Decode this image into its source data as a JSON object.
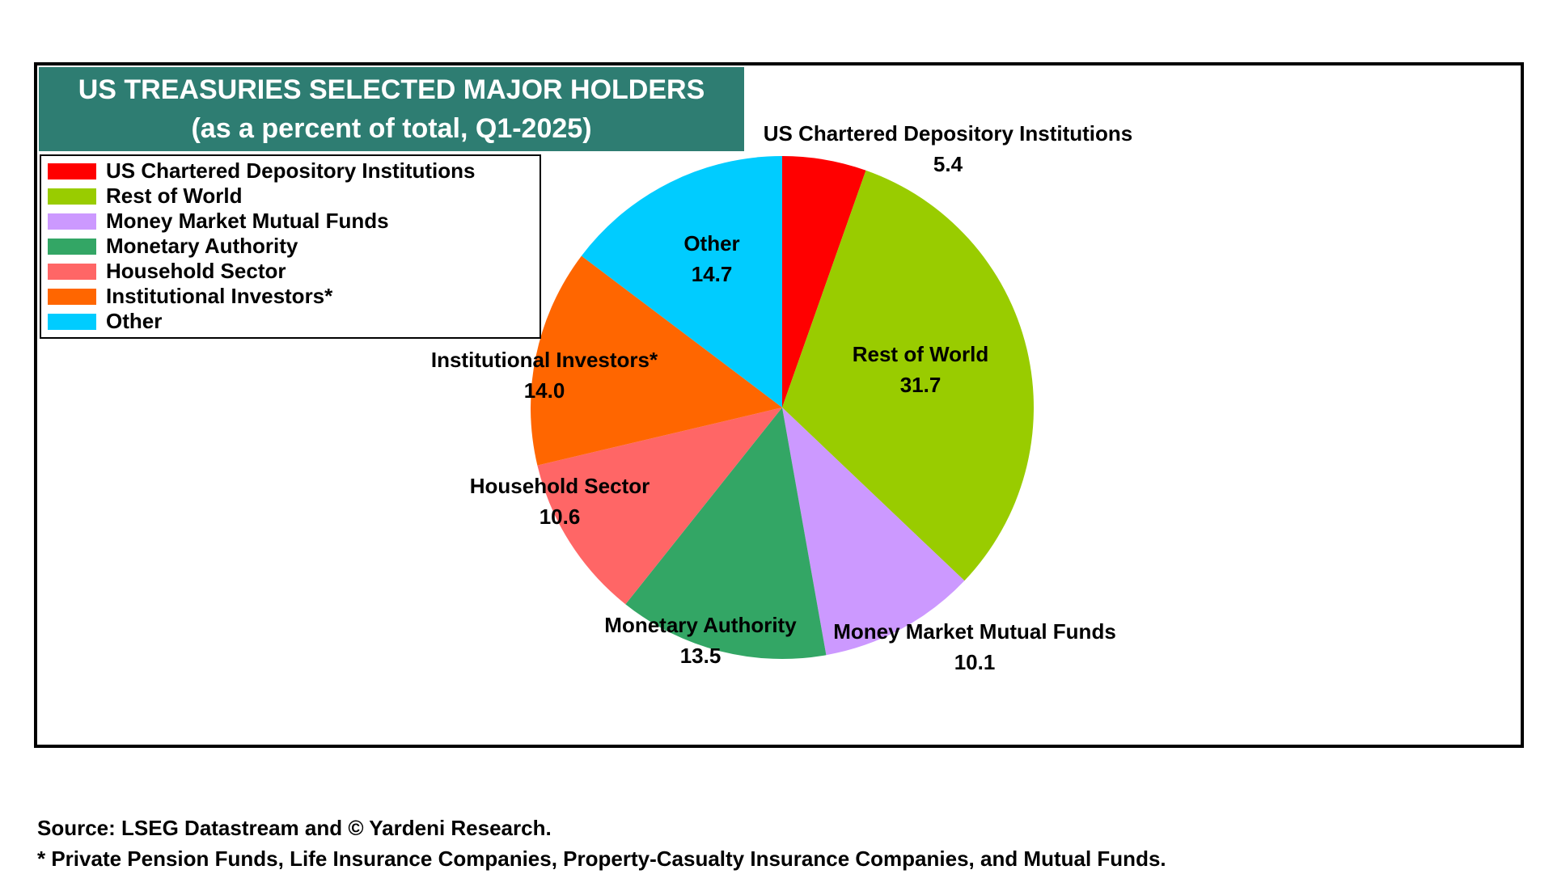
{
  "chart_data": {
    "type": "pie",
    "title": "US TREASURIES SELECTED MAJOR HOLDERS",
    "subtitle": "(as a percent of total, Q1-2025)",
    "categories": [
      "US Chartered Depository Institutions",
      "Rest of World",
      "Money Market Mutual Funds",
      "Monetary Authority",
      "Household Sector",
      "Institutional Investors*",
      "Other"
    ],
    "values": [
      5.4,
      31.7,
      10.1,
      13.5,
      10.6,
      14.0,
      14.7
    ],
    "value_labels": [
      "5.4",
      "31.7",
      "10.1",
      "13.5",
      "10.6",
      "14.0",
      "14.7"
    ],
    "colors": [
      "#ff0000",
      "#99cc00",
      "#cc99ff",
      "#33a665",
      "#ff6666",
      "#ff6600",
      "#00ccff"
    ],
    "legend_position": "top-left",
    "start_angle": "12 o'clock",
    "direction": "clockwise"
  },
  "title_box_color": "#2e7d72",
  "footnotes": {
    "source": "Source: LSEG Datastream and © Yardeni Research.",
    "note": "* Private Pension Funds, Life Insurance Companies, Property-Casualty Insurance Companies, and Mutual Funds."
  }
}
